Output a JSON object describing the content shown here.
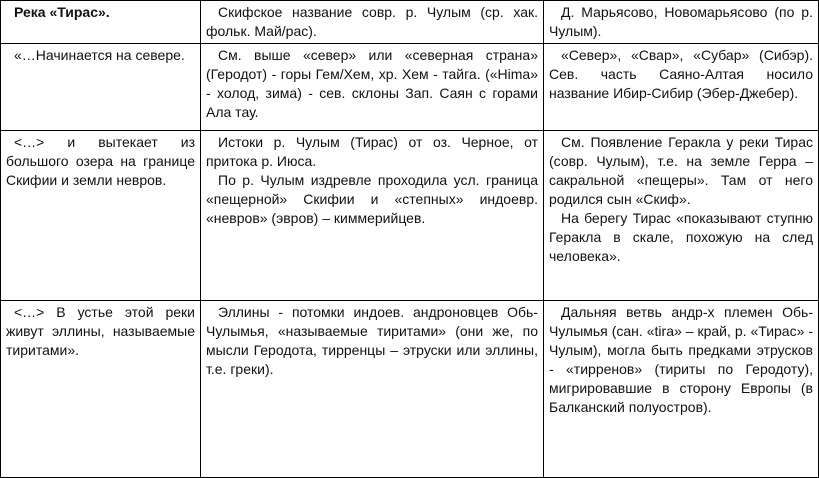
{
  "table": {
    "rows": [
      [
        [
          "Река «Тирас»."
        ],
        [
          "Скифское название совр. р. Чулым (ср. хак. фольк. Май/рас)."
        ],
        [
          "Д. Марьясово, Новомарьясово (по р. Чулым)."
        ]
      ],
      [
        [
          "«…Начинается на севере."
        ],
        [
          "См. выше «север» или «северная страна» (Геродот) - горы Гем/Хем, хр. Хем - тайга. («Hima» - холод, зима) - сев. склоны Зап. Саян с горами Ала тау."
        ],
        [
          "«Север», «Свар», «Субар» (Сибэр). Сев. часть Саяно-Алтая носило название Ибир-Сибир (Эбер-Джебер)."
        ]
      ],
      [
        [
          "<…> и вытекает из большого озера на границе Скифии и земли невров."
        ],
        [
          "Истоки р. Чулым (Тирас) от оз. Черное, от притока р. Июса.",
          "По р. Чулым издревле проходила усл. граница «пещерной» Скифии и «степных» индоевр. «невров» (эвров) – киммерийцев."
        ],
        [
          "См. Появление Геракла у реки Тирас (совр. Чулым), т.е. на земле Герра – сакральной «пещеры». Там от него родился сын «Скиф».",
          "На берегу Тирас «показывают ступню Геракла в скале, похожую на след человека»."
        ]
      ],
      [
        [
          "<…> В устье этой реки живут эллины, называемые тиритами»."
        ],
        [
          "Эллины - потомки индоев. андроновцев Обь-Чулымья, «называемые тиритами» (они же, по мысли Геродота, тирренцы – этруски или эллины, т.е. греки)."
        ],
        [
          "Дальняя ветвь андр-х племен Обь-Чулымья (сан. «tira» – край, р. «Тирас» - Чулым), могла быть предками этрусков - «тирренов» (тириты по Геродоту), мигрировавшие в сторону Европы (в Балканский полуостров)."
        ]
      ]
    ]
  }
}
